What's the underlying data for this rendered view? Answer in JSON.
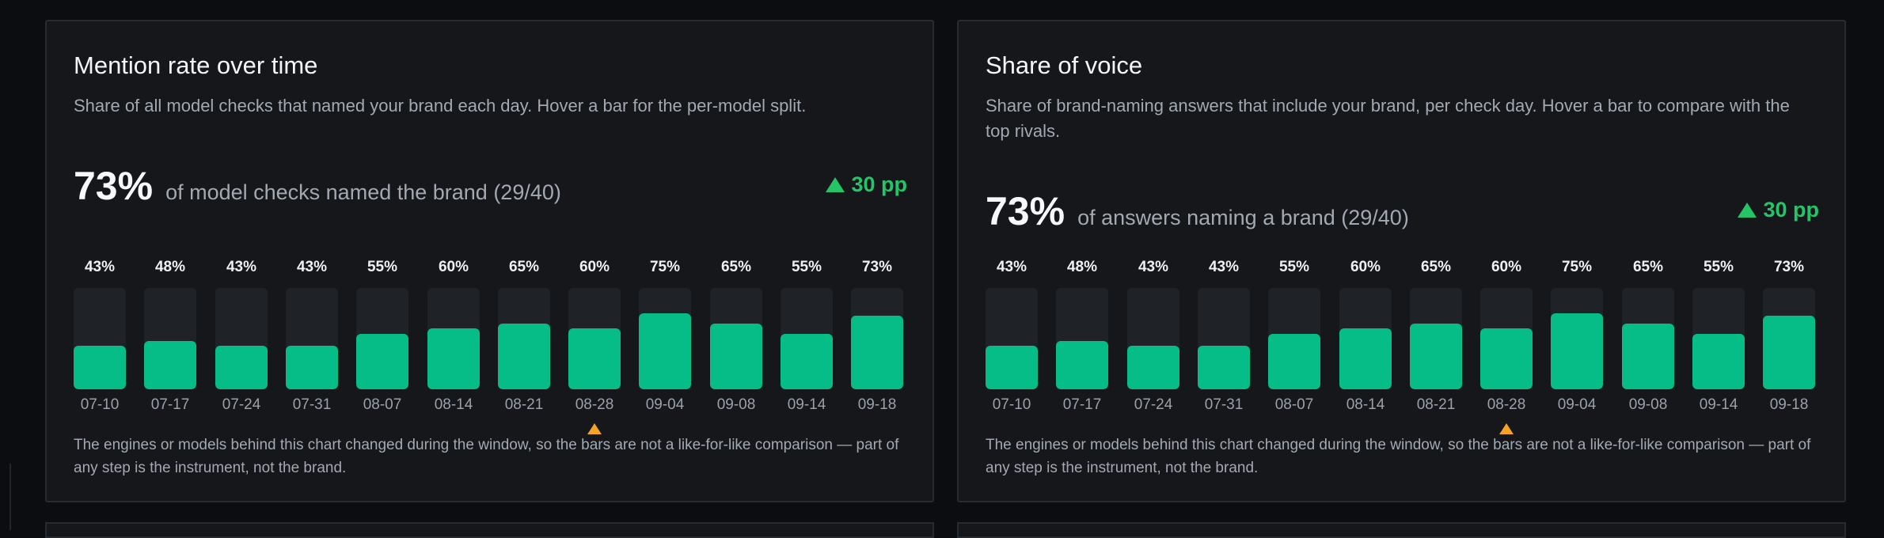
{
  "cards": [
    {
      "title": "Mention rate over time",
      "subtitle": "Share of all model checks that named your brand each day. Hover a bar for the per-model split.",
      "kpi_value": "73%",
      "kpi_text": "of model checks named the brand (29/40)",
      "delta": "30 pp",
      "delta_icon": "triangle-up-icon",
      "chart_data": {
        "type": "bar",
        "categories": [
          "07-10",
          "07-17",
          "07-24",
          "07-31",
          "08-07",
          "08-14",
          "08-21",
          "08-28",
          "09-04",
          "09-08",
          "09-14",
          "09-18"
        ],
        "values": [
          43,
          48,
          43,
          43,
          55,
          60,
          65,
          60,
          75,
          65,
          55,
          73
        ],
        "value_labels": [
          "43%",
          "48%",
          "43%",
          "43%",
          "55%",
          "60%",
          "65%",
          "60%",
          "75%",
          "65%",
          "55%",
          "73%"
        ],
        "ylim": [
          0,
          100
        ],
        "unit": "%",
        "marked_category": "08-28",
        "marker_icon": "triangle-up-icon"
      },
      "note": "The engines or models behind this chart changed during the window, so the bars are not a like-for-like comparison — part of any step is the instrument, not the brand."
    },
    {
      "title": "Share of voice",
      "subtitle": "Share of brand-naming answers that include your brand, per check day. Hover a bar to compare with the top rivals.",
      "kpi_value": "73%",
      "kpi_text": "of answers naming a brand (29/40)",
      "delta": "30 pp",
      "delta_icon": "triangle-up-icon",
      "chart_data": {
        "type": "bar",
        "categories": [
          "07-10",
          "07-17",
          "07-24",
          "07-31",
          "08-07",
          "08-14",
          "08-21",
          "08-28",
          "09-04",
          "09-08",
          "09-14",
          "09-18"
        ],
        "values": [
          43,
          48,
          43,
          43,
          55,
          60,
          65,
          60,
          75,
          65,
          55,
          73
        ],
        "value_labels": [
          "43%",
          "48%",
          "43%",
          "43%",
          "55%",
          "60%",
          "65%",
          "60%",
          "75%",
          "65%",
          "55%",
          "73%"
        ],
        "ylim": [
          0,
          100
        ],
        "unit": "%",
        "marked_category": "08-28",
        "marker_icon": "triangle-up-icon"
      },
      "note": "The engines or models behind this chart changed during the window, so the bars are not a like-for-like comparison — part of any step is the instrument, not the brand."
    }
  ],
  "colors": {
    "background": "#0b0d11",
    "card": "#15171b",
    "bar": "#06bd87",
    "track": "#1f2227",
    "positive": "#25c468",
    "marker": "#f5a324"
  }
}
